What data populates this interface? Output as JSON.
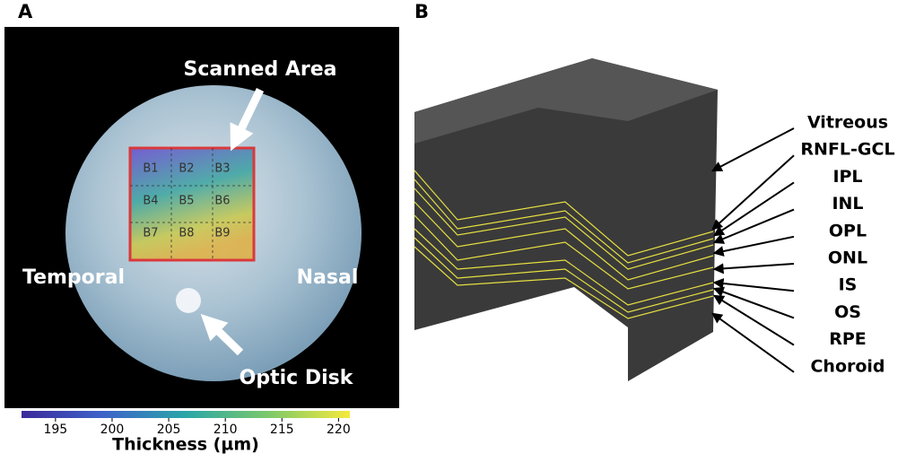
{
  "panel_a": {
    "label": "A",
    "annotations": {
      "scanned_area": "Scanned Area",
      "temporal": "Temporal",
      "nasal": "Nasal",
      "optic_disk": "Optic Disk"
    },
    "grid": [
      "B1",
      "B2",
      "B3",
      "B4",
      "B5",
      "B6",
      "B7",
      "B8",
      "B9"
    ],
    "colorbar": {
      "title": "Thickness (µm)",
      "range": [
        192,
        221
      ],
      "ticks": [
        195,
        200,
        205,
        210,
        215,
        220
      ]
    }
  },
  "panel_b": {
    "label": "B",
    "layers": [
      "Vitreous",
      "RNFL-GCL",
      "IPL",
      "INL",
      "OPL",
      "ONL",
      "IS",
      "OS",
      "RPE",
      "Choroid"
    ]
  }
}
